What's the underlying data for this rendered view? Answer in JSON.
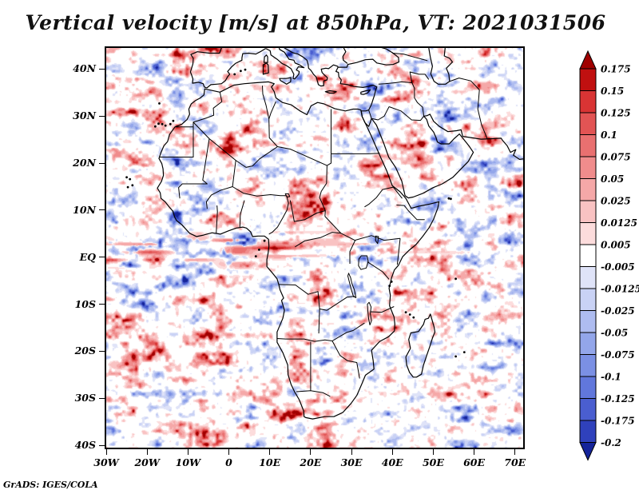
{
  "title": "Vertical velocity [m/s] at 850hPa, VT: 2021031506",
  "attribution": "GrADS: IGES/COLA",
  "axes": {
    "lat_ticks": [
      {
        "label": "40N",
        "value": 40
      },
      {
        "label": "30N",
        "value": 30
      },
      {
        "label": "20N",
        "value": 20
      },
      {
        "label": "10N",
        "value": 10
      },
      {
        "label": "EQ",
        "value": 0
      },
      {
        "label": "10S",
        "value": -10
      },
      {
        "label": "20S",
        "value": -20
      },
      {
        "label": "30S",
        "value": -30
      },
      {
        "label": "40S",
        "value": -40
      }
    ],
    "lon_ticks": [
      {
        "label": "30W",
        "value": -30
      },
      {
        "label": "20W",
        "value": -20
      },
      {
        "label": "10W",
        "value": -10
      },
      {
        "label": "0",
        "value": 0
      },
      {
        "label": "10E",
        "value": 10
      },
      {
        "label": "20E",
        "value": 20
      },
      {
        "label": "30E",
        "value": 30
      },
      {
        "label": "40E",
        "value": 40
      },
      {
        "label": "50E",
        "value": 50
      },
      {
        "label": "60E",
        "value": 60
      },
      {
        "label": "70E",
        "value": 70
      }
    ]
  },
  "colorbar": {
    "labels": [
      "0.175",
      "0.15",
      "0.125",
      "0.1",
      "0.075",
      "0.05",
      "0.025",
      "0.0125",
      "0.005",
      "-0.005",
      "-0.0125",
      "-0.025",
      "-0.05",
      "-0.075",
      "-0.1",
      "-0.125",
      "-0.175",
      "-0.2"
    ],
    "colors_top_to_bottom": [
      "#a00000",
      "#c01010",
      "#d93434",
      "#e25454",
      "#e97070",
      "#f08c8c",
      "#f5a8a8",
      "#f9c2c2",
      "#fcdcdc",
      "#ffffff",
      "#dfe3f8",
      "#c9d2f5",
      "#aebcf0",
      "#93a6ea",
      "#7b90e4",
      "#6177dc",
      "#4a5ed0",
      "#2f41bc",
      "#15249a"
    ]
  },
  "chart_data": {
    "type": "heatmap",
    "title": "Vertical velocity [m/s] at 850hPa, VT: 2021031506",
    "variable": "Vertical velocity",
    "units": "m/s",
    "pressure_level": "850hPa",
    "valid_time": "2021031506",
    "region": "Africa, Mediterranean, Arabian Peninsula and western Indian Ocean",
    "lon_range": [
      -30,
      72
    ],
    "lat_range": [
      -40.5,
      44.5
    ],
    "contour_levels": [
      -0.2,
      -0.175,
      -0.125,
      -0.1,
      -0.075,
      -0.05,
      -0.025,
      -0.0125,
      -0.005,
      0.005,
      0.0125,
      0.025,
      0.05,
      0.075,
      0.1,
      0.125,
      0.15,
      0.175
    ],
    "palette_low_to_high": [
      "#15249a",
      "#2f41bc",
      "#4a5ed0",
      "#6177dc",
      "#7b90e4",
      "#93a6ea",
      "#aebcf0",
      "#c9d2f5",
      "#dfe3f8",
      "#ffffff",
      "#fcdcdc",
      "#f9c2c2",
      "#f5a8a8",
      "#f08c8c",
      "#e97070",
      "#e25454",
      "#d93434",
      "#c01010",
      "#a00000"
    ],
    "legend_position": "right",
    "grid": false,
    "field_description": "Noisy small-scale field of alternating upward (red, positive) and downward (blue, negative) vertical-velocity cells covering the whole domain; most values lie between -0.05 and 0.05 m/s, with scattered intense cells beyond ±0.175 m/s and streaky east-west red bands just north of the equator over the tropical Atlantic."
  }
}
